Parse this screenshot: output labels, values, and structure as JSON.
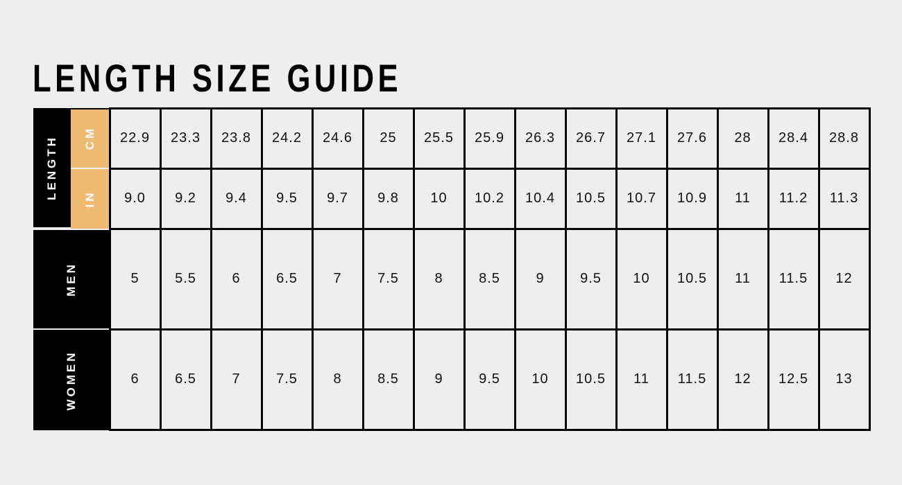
{
  "title": "LENGTH SIZE GUIDE",
  "colors": {
    "background": "#eeeeee",
    "header": "#000000",
    "unit_header": "#efbb73",
    "grid": "#000000"
  },
  "labels": {
    "length": "LENGTH",
    "cm": "CM",
    "in": "IN",
    "men": "MEN",
    "women": "WOMEN"
  },
  "rows": {
    "cm": [
      "22.9",
      "23.3",
      "23.8",
      "24.2",
      "24.6",
      "25",
      "25.5",
      "25.9",
      "26.3",
      "26.7",
      "27.1",
      "27.6",
      "28",
      "28.4",
      "28.8"
    ],
    "in": [
      "9.0",
      "9.2",
      "9.4",
      "9.5",
      "9.7",
      "9.8",
      "10",
      "10.2",
      "10.4",
      "10.5",
      "10.7",
      "10.9",
      "11",
      "11.2",
      "11.3"
    ],
    "men": [
      "5",
      "5.5",
      "6",
      "6.5",
      "7",
      "7.5",
      "8",
      "8.5",
      "9",
      "9.5",
      "10",
      "10.5",
      "11",
      "11.5",
      "12"
    ],
    "women": [
      "6",
      "6.5",
      "7",
      "7.5",
      "8",
      "8.5",
      "9",
      "9.5",
      "10",
      "10.5",
      "11",
      "11.5",
      "12",
      "12.5",
      "13"
    ]
  }
}
